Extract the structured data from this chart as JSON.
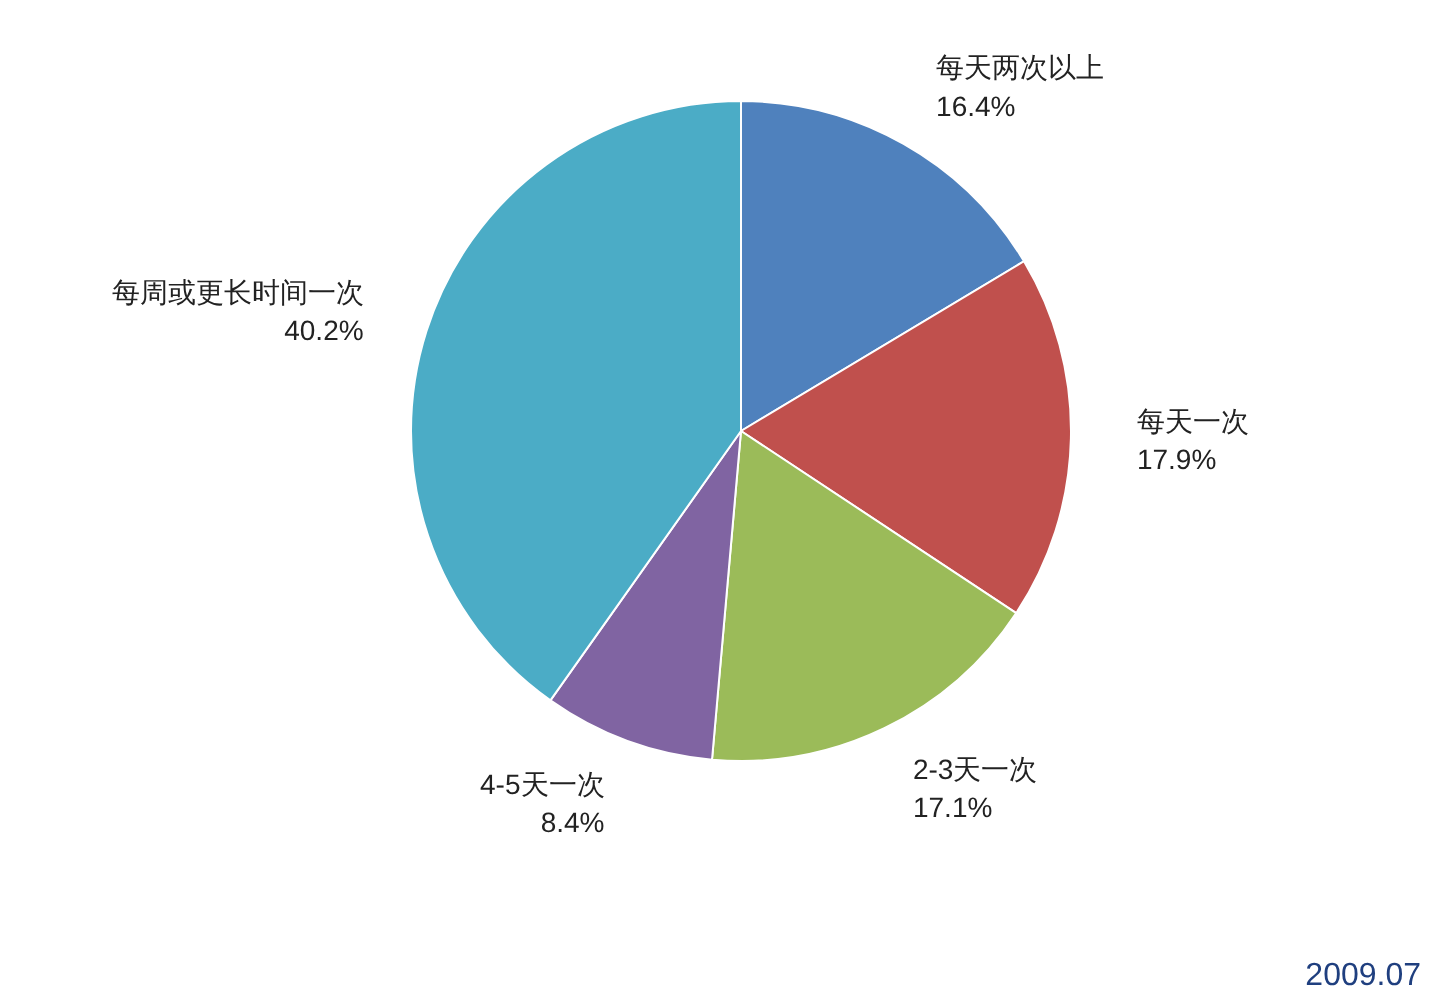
{
  "chart_data": {
    "type": "pie",
    "categories": [
      "每天两次以上",
      "每天一次",
      "2-3天一次",
      "4-5天一次",
      "每周或更长时间一次"
    ],
    "values": [
      16.4,
      17.9,
      17.1,
      8.4,
      40.2
    ],
    "colors": [
      "#4f81bd",
      "#c0504d",
      "#9bbb59",
      "#8064a2",
      "#4bacc6"
    ],
    "value_labels": [
      "16.4%",
      "17.9%",
      "17.1%",
      "8.4%",
      "40.2%"
    ],
    "annotations": [
      "2009.07"
    ]
  }
}
